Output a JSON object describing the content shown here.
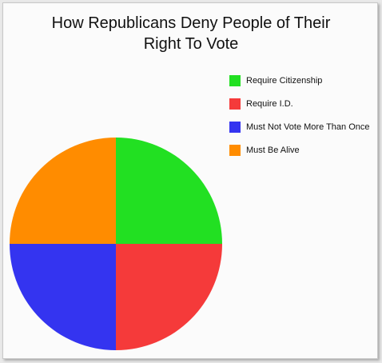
{
  "chart_data": {
    "type": "pie",
    "title": "How Republicans Deny People of Their Right To Vote",
    "categories": [
      "Require Citizenship",
      "Require I.D.",
      "Must Not Vote More Than Once",
      "Must Be Alive"
    ],
    "values": [
      25,
      25,
      25,
      25
    ],
    "colors": [
      "#22e022",
      "#f53a3a",
      "#3434f0",
      "#ff8c00"
    ]
  }
}
